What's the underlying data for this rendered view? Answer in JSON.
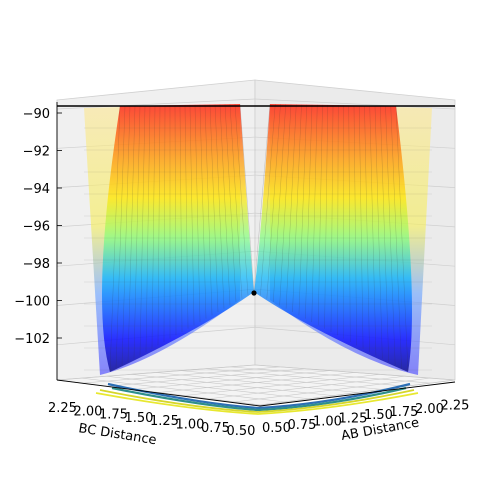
{
  "chart_data": {
    "type": "surface3d",
    "title": "",
    "xlabel": "AB Distance",
    "ylabel": "BC Distance",
    "zlabel": "",
    "x_ticks": [
      "0.50",
      "0.75",
      "1.00",
      "1.25",
      "1.50",
      "1.75",
      "2.00",
      "2.25"
    ],
    "y_ticks": [
      "2.25",
      "2.00",
      "1.75",
      "1.50",
      "1.25",
      "1.00",
      "0.75",
      "0.50"
    ],
    "z_ticks": [
      "−90",
      "−92",
      "−94",
      "−96",
      "−98",
      "−100",
      "−102"
    ],
    "xlim": [
      0.5,
      2.25
    ],
    "ylim": [
      0.5,
      2.25
    ],
    "zlim": [
      -103.5,
      -90
    ],
    "colormap": "jet",
    "surface_alpha": 0.45,
    "marker": {
      "x": 0.74,
      "y": 0.74,
      "z": -99.6,
      "color": "#000000"
    },
    "contour_colors": [
      "#2c6fb5",
      "#2f8f8a",
      "#d6d62a",
      "#e8e830"
    ],
    "grid": true
  }
}
